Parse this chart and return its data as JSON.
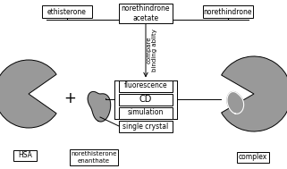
{
  "bg_color": "#ffffff",
  "gray_color": "#999999",
  "box_color": "#ffffff",
  "box_edge": "#000000",
  "line_color": "#000000",
  "labels": {
    "ethisterone": "ethisterone",
    "norethindrone_acetate": "norethindrone\nacetate",
    "norethindrone": "norethindrone",
    "fluorescence": "fluorescence",
    "cd": "CD",
    "simulation": "simulation",
    "single_crystal": "single crystal",
    "hsa": "HSA",
    "norethisterone_enanthate": "norethisterone\nenanthate",
    "complex": "complex",
    "compare": "compare",
    "binding_ability": "binding ablity",
    "plus": "+"
  },
  "font_size": 5.5,
  "font_size_large": 7.0
}
